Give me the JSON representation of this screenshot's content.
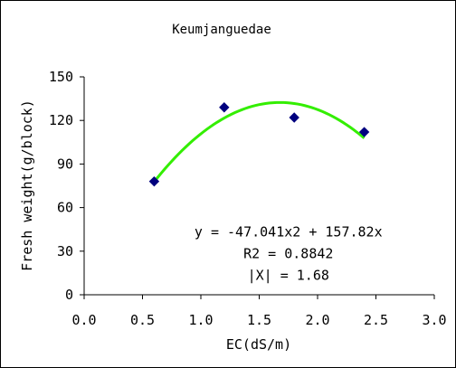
{
  "chart_data": {
    "type": "scatter",
    "title": "Keumjanguedae",
    "xlabel": "EC(dS/m)",
    "ylabel": "Fresh weight(g/block)",
    "xlim": [
      0,
      3
    ],
    "ylim": [
      0,
      150
    ],
    "x_ticks": [
      "0.0",
      "0.5",
      "1.0",
      "1.5",
      "2.0",
      "2.5",
      "3.0"
    ],
    "y_ticks": [
      "0",
      "30",
      "60",
      "90",
      "120",
      "150"
    ],
    "grid": false,
    "legend": "none",
    "points": [
      {
        "x": 0.6,
        "y": 78
      },
      {
        "x": 1.2,
        "y": 129
      },
      {
        "x": 1.8,
        "y": 122
      },
      {
        "x": 2.4,
        "y": 112
      }
    ],
    "point_color": "#00007f",
    "trendline": {
      "a": -47.041,
      "b": 157.82,
      "x_range": [
        0.6,
        2.4
      ],
      "color": "#33ee00"
    },
    "annotations": [
      "y = -47.041x2 + 157.82x",
      "R2 = 0.8842",
      "|X| = 1.68"
    ]
  }
}
